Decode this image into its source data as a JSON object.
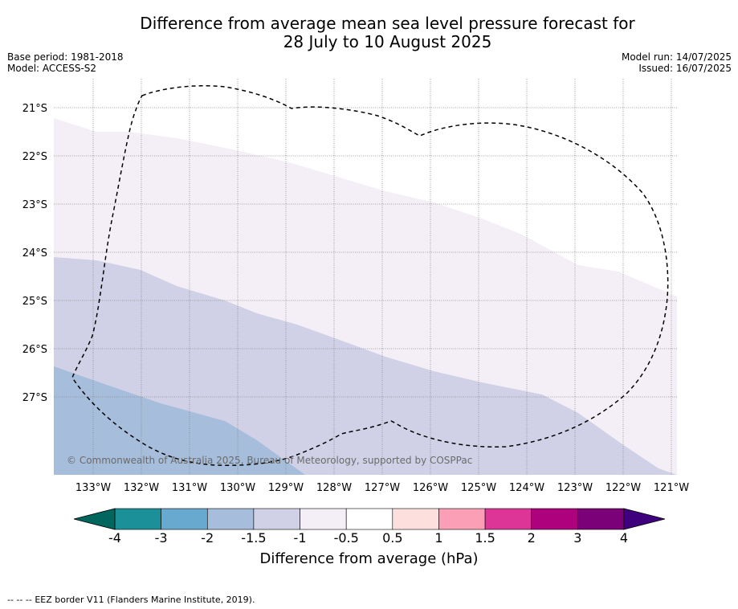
{
  "title": {
    "line1": "Difference from average mean sea level pressure forecast for",
    "line2": "28 July to 10 August 2025"
  },
  "meta": {
    "base_period": "Base period: 1981-2018",
    "model": "Model: ACCESS-S2",
    "model_run": "Model run: 14/07/2025",
    "issued": "Issued: 16/07/2025"
  },
  "map": {
    "latitude_labels": [
      "21°S",
      "22°S",
      "23°S",
      "24°S",
      "25°S",
      "26°S",
      "27°S"
    ],
    "longitude_labels": [
      "133°W",
      "132°W",
      "131°W",
      "130°W",
      "129°W",
      "128°W",
      "127°W",
      "126°W",
      "125°W",
      "124°W",
      "123°W",
      "122°W",
      "121°W"
    ],
    "copyright": "© Commonwealth of Australia 2025, Bureau of Meteorology, supported by COSPPac",
    "eez_line_style": "dashed",
    "regions": [
      {
        "range": "-1 to -0.5",
        "color": "#f4eef6"
      },
      {
        "range": "-1.5 to -1",
        "color": "#d0d1e6"
      },
      {
        "range": "-2 to -1.5",
        "color": "#a6bddb"
      }
    ]
  },
  "colorbar": {
    "title": "Difference from average (hPa)",
    "ticks": [
      "-4",
      "-3",
      "-2",
      "-1.5",
      "-1",
      "-0.5",
      "0.5",
      "1",
      "1.5",
      "2",
      "3",
      "4"
    ],
    "under_color": "#01665e",
    "over_color": "#3f007d",
    "colors": [
      "#1b9099",
      "#67a9cf",
      "#a6bddb",
      "#d0d1e6",
      "#f4eef6",
      "#ffffff",
      "#fde0dd",
      "#fa9fb5",
      "#dd3497",
      "#ae017e",
      "#7a0177"
    ]
  },
  "footer": {
    "legend_symbol": "--  --  --",
    "eez_text": "EEZ border V11 (Flanders Marine Institute, 2019)."
  }
}
